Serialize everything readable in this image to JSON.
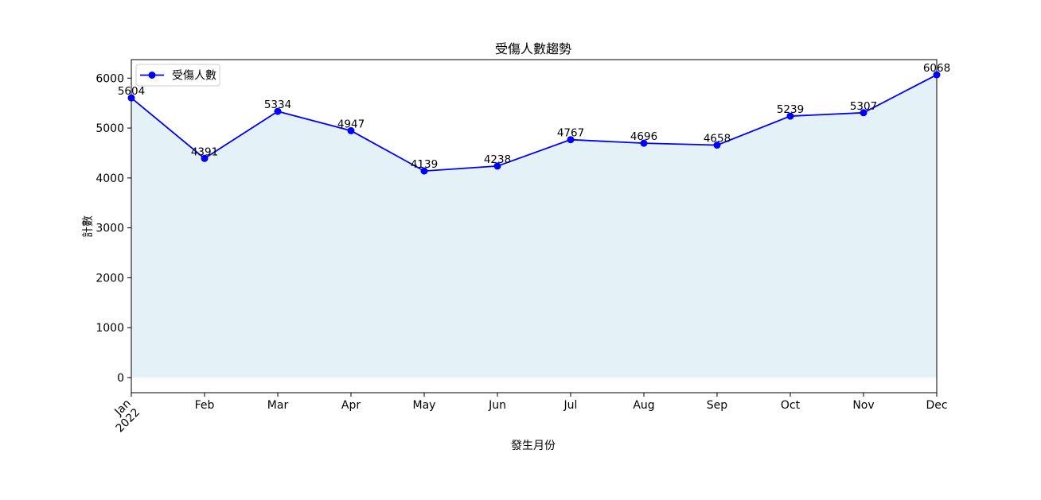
{
  "chart_data": {
    "type": "area",
    "title": "受傷人數趨勢",
    "xlabel": "發生月份",
    "ylabel": "計數",
    "x": [
      "2022-01",
      "2022-02",
      "2022-03",
      "2022-04",
      "2022-05",
      "2022-06",
      "2022-07",
      "2022-08",
      "2022-09",
      "2022-10",
      "2022-11",
      "2022-12"
    ],
    "x_tick_labels": [
      "Jan\n2022",
      "Feb",
      "Mar",
      "Apr",
      "May",
      "Jun",
      "Jul",
      "Aug",
      "Sep",
      "Oct",
      "Nov",
      "Dec"
    ],
    "series": [
      {
        "name": "受傷人數",
        "values": [
          5604,
          4391,
          5334,
          4947,
          4139,
          4238,
          4767,
          4696,
          4658,
          5239,
          5307,
          6068
        ],
        "line_color": "#0000ff",
        "marker": "circle",
        "fill_color": "#add8e6",
        "fill_opacity": 0.33
      }
    ],
    "y_ticks": [
      0,
      1000,
      2000,
      3000,
      4000,
      5000,
      6000
    ],
    "ylim": [
      -303,
      6371
    ],
    "legend_position": "top-left",
    "grid": false,
    "data_labels": true
  }
}
